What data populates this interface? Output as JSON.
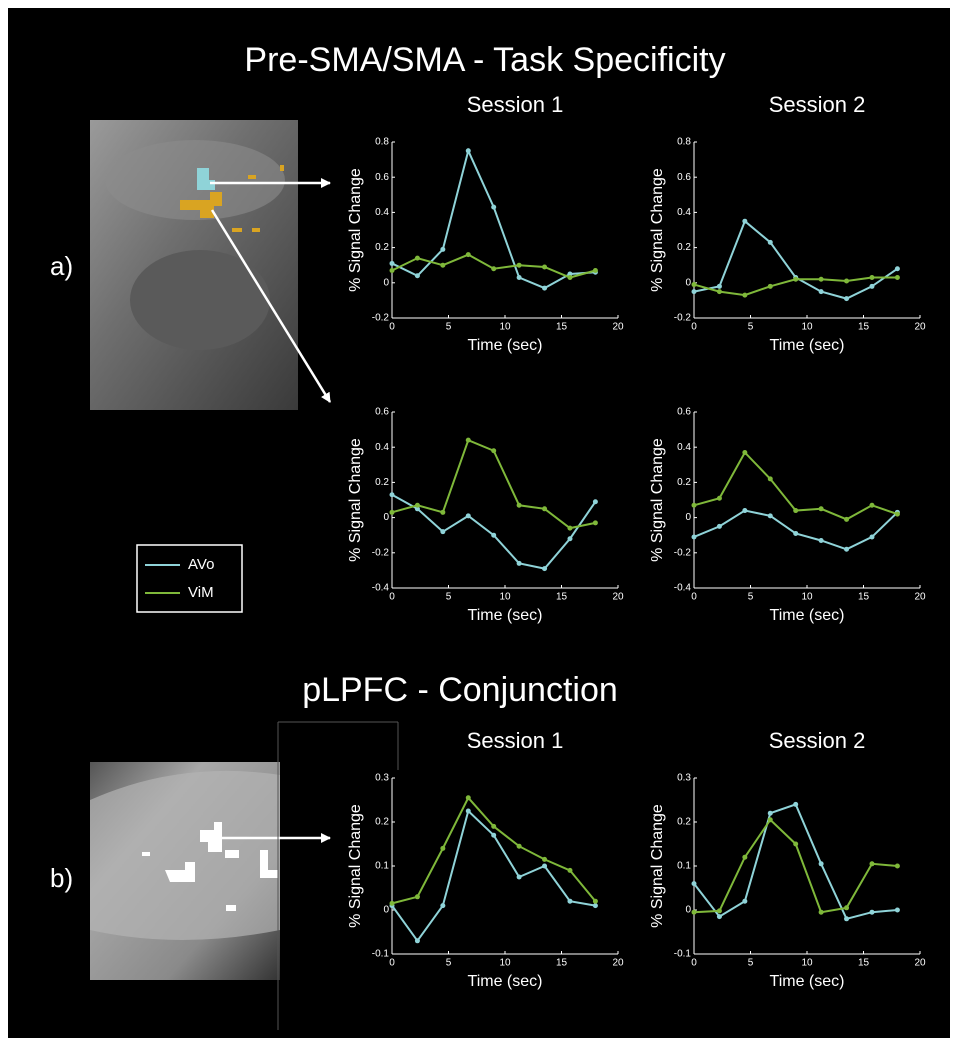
{
  "sections": [
    {
      "title": "Pre-SMA/SMA - Task Specificity",
      "label": "a)"
    },
    {
      "title": "pLPFC - Conjunction",
      "label": "b)"
    }
  ],
  "legend": [
    {
      "name": "AVo",
      "color": "#8fd3d8"
    },
    {
      "name": "ViM",
      "color": "#7fb83a"
    }
  ],
  "chart_data": [
    {
      "type": "line",
      "title": "Session 1",
      "xlabel": "Time (sec)",
      "ylabel": "% Signal Change",
      "x": [
        0,
        2.25,
        4.5,
        6.75,
        9,
        11.25,
        13.5,
        15.75,
        18
      ],
      "series": [
        {
          "values": [
            0.11,
            0.04,
            0.19,
            0.75,
            0.43,
            0.03,
            -0.03,
            0.05,
            0.06
          ]
        },
        {
          "values": [
            0.07,
            0.14,
            0.1,
            0.16,
            0.08,
            0.1,
            0.09,
            0.03,
            0.07
          ]
        }
      ],
      "xlim": [
        0,
        20
      ],
      "xticks": [
        0,
        5,
        10,
        15,
        20
      ],
      "ylim": [
        -0.2,
        0.8
      ],
      "yticks": [
        -0.2,
        0,
        0.2,
        0.4,
        0.6,
        0.8
      ]
    },
    {
      "type": "line",
      "title": "Session 2",
      "xlabel": "Time (sec)",
      "ylabel": "% Signal Change",
      "x": [
        0,
        2.25,
        4.5,
        6.75,
        9,
        11.25,
        13.5,
        15.75,
        18
      ],
      "series": [
        {
          "values": [
            -0.05,
            -0.02,
            0.35,
            0.23,
            0.03,
            -0.05,
            -0.09,
            -0.02,
            0.08
          ]
        },
        {
          "values": [
            -0.01,
            -0.05,
            -0.07,
            -0.02,
            0.02,
            0.02,
            0.01,
            0.03,
            0.03
          ]
        }
      ],
      "xlim": [
        0,
        20
      ],
      "xticks": [
        0,
        5,
        10,
        15,
        20
      ],
      "ylim": [
        -0.2,
        0.8
      ],
      "yticks": [
        -0.2,
        0,
        0.2,
        0.4,
        0.6,
        0.8
      ]
    },
    {
      "type": "line",
      "xlabel": "Time (sec)",
      "ylabel": "% Signal Change",
      "x": [
        0,
        2.25,
        4.5,
        6.75,
        9,
        11.25,
        13.5,
        15.75,
        18
      ],
      "series": [
        {
          "values": [
            0.13,
            0.05,
            -0.08,
            0.01,
            -0.1,
            -0.26,
            -0.29,
            -0.12,
            0.09
          ]
        },
        {
          "values": [
            0.03,
            0.07,
            0.03,
            0.44,
            0.38,
            0.07,
            0.05,
            -0.06,
            -0.03
          ]
        }
      ],
      "xlim": [
        0,
        20
      ],
      "xticks": [
        0,
        5,
        10,
        15,
        20
      ],
      "ylim": [
        -0.4,
        0.6
      ],
      "yticks": [
        -0.4,
        -0.2,
        0,
        0.2,
        0.4,
        0.6
      ]
    },
    {
      "type": "line",
      "xlabel": "Time (sec)",
      "ylabel": "% Signal Change",
      "x": [
        0,
        2.25,
        4.5,
        6.75,
        9,
        11.25,
        13.5,
        15.75,
        18
      ],
      "series": [
        {
          "values": [
            -0.11,
            -0.05,
            0.04,
            0.01,
            -0.09,
            -0.13,
            -0.18,
            -0.11,
            0.03
          ]
        },
        {
          "values": [
            0.07,
            0.11,
            0.37,
            0.22,
            0.04,
            0.05,
            -0.01,
            0.07,
            0.02
          ]
        }
      ],
      "xlim": [
        0,
        20
      ],
      "xticks": [
        0,
        5,
        10,
        15,
        20
      ],
      "ylim": [
        -0.4,
        0.6
      ],
      "yticks": [
        -0.4,
        -0.2,
        0,
        0.2,
        0.4,
        0.6
      ]
    },
    {
      "type": "line",
      "title": "Session 1",
      "xlabel": "Time (sec)",
      "ylabel": "% Signal Change",
      "x": [
        0,
        2.25,
        4.5,
        6.75,
        9,
        11.25,
        13.5,
        15.75,
        18
      ],
      "series": [
        {
          "values": [
            0.01,
            -0.07,
            0.01,
            0.225,
            0.17,
            0.075,
            0.1,
            0.02,
            0.01
          ]
        },
        {
          "values": [
            0.015,
            0.03,
            0.14,
            0.255,
            0.19,
            0.145,
            0.115,
            0.09,
            0.02
          ]
        }
      ],
      "xlim": [
        0,
        20
      ],
      "xticks": [
        0,
        5,
        10,
        15,
        20
      ],
      "ylim": [
        -0.1,
        0.3
      ],
      "yticks": [
        -0.1,
        0,
        0.1,
        0.2,
        0.3
      ]
    },
    {
      "type": "line",
      "title": "Session 2",
      "xlabel": "Time (sec)",
      "ylabel": "% Signal Change",
      "x": [
        0,
        2.25,
        4.5,
        6.75,
        9,
        11.25,
        13.5,
        15.75,
        18
      ],
      "series": [
        {
          "values": [
            0.06,
            -0.015,
            0.02,
            0.22,
            0.24,
            0.105,
            -0.02,
            -0.005,
            0.0
          ]
        },
        {
          "values": [
            -0.005,
            -0.002,
            0.12,
            0.205,
            0.15,
            -0.005,
            0.005,
            0.105,
            0.1
          ]
        }
      ],
      "xlim": [
        0,
        20
      ],
      "xticks": [
        0,
        5,
        10,
        15,
        20
      ],
      "ylim": [
        -0.1,
        0.3
      ],
      "yticks": [
        -0.1,
        0,
        0.1,
        0.2,
        0.3
      ]
    }
  ]
}
